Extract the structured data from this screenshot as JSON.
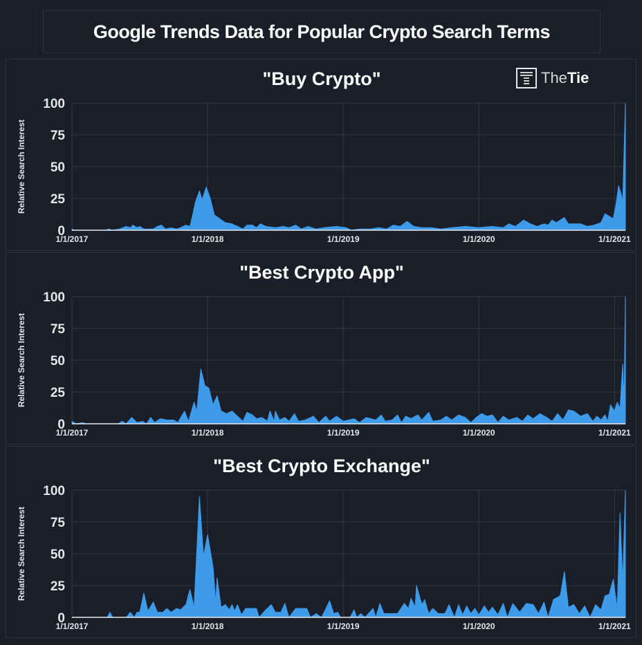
{
  "header": {
    "title": "Google Trends Data for Popular Crypto Search Terms"
  },
  "logo": {
    "text_light": "The",
    "text_bold": "Tie"
  },
  "chart_data": [
    {
      "type": "area",
      "title": "\"Buy Crypto\"",
      "ylabel": "Relative Search Interest",
      "xlabel": "",
      "ylim": [
        0,
        100
      ],
      "xlim": [
        2017.0,
        2021.08
      ],
      "yticks": [
        "0",
        "25",
        "50",
        "75",
        "100"
      ],
      "xticks": [
        {
          "x": 2017,
          "label": "1/1/2017"
        },
        {
          "x": 2018,
          "label": "1/1/2018"
        },
        {
          "x": 2019,
          "label": "1/1/2019"
        },
        {
          "x": 2020,
          "label": "1/1/2020"
        },
        {
          "x": 2021,
          "label": "1/1/2021"
        }
      ],
      "color": "#3d9be9",
      "points": [
        [
          2017.0,
          1
        ],
        [
          2017.02,
          0
        ],
        [
          2017.25,
          0
        ],
        [
          2017.27,
          1
        ],
        [
          2017.3,
          0
        ],
        [
          2017.35,
          1
        ],
        [
          2017.4,
          3
        ],
        [
          2017.43,
          2
        ],
        [
          2017.45,
          4
        ],
        [
          2017.48,
          2
        ],
        [
          2017.5,
          3
        ],
        [
          2017.53,
          1
        ],
        [
          2017.6,
          1
        ],
        [
          2017.63,
          3
        ],
        [
          2017.66,
          4
        ],
        [
          2017.69,
          1
        ],
        [
          2017.73,
          2
        ],
        [
          2017.77,
          1
        ],
        [
          2017.8,
          2
        ],
        [
          2017.84,
          4
        ],
        [
          2017.87,
          3
        ],
        [
          2017.89,
          12
        ],
        [
          2017.91,
          22
        ],
        [
          2017.94,
          31
        ],
        [
          2017.96,
          24
        ],
        [
          2017.99,
          34
        ],
        [
          2018.02,
          25
        ],
        [
          2018.05,
          12
        ],
        [
          2018.09,
          9
        ],
        [
          2018.13,
          6
        ],
        [
          2018.18,
          5
        ],
        [
          2018.22,
          3
        ],
        [
          2018.26,
          1
        ],
        [
          2018.29,
          4
        ],
        [
          2018.33,
          4
        ],
        [
          2018.36,
          2
        ],
        [
          2018.39,
          5
        ],
        [
          2018.43,
          3
        ],
        [
          2018.5,
          2
        ],
        [
          2018.56,
          3
        ],
        [
          2018.6,
          2
        ],
        [
          2018.65,
          4
        ],
        [
          2018.69,
          1
        ],
        [
          2018.74,
          3
        ],
        [
          2018.8,
          1
        ],
        [
          2018.86,
          2
        ],
        [
          2018.95,
          3
        ],
        [
          2019.02,
          2
        ],
        [
          2019.06,
          0
        ],
        [
          2019.12,
          1
        ],
        [
          2019.2,
          1
        ],
        [
          2019.26,
          2
        ],
        [
          2019.32,
          1
        ],
        [
          2019.37,
          4
        ],
        [
          2019.42,
          3
        ],
        [
          2019.47,
          7
        ],
        [
          2019.52,
          3
        ],
        [
          2019.58,
          2
        ],
        [
          2019.65,
          2
        ],
        [
          2019.72,
          1
        ],
        [
          2019.8,
          2
        ],
        [
          2019.9,
          3
        ],
        [
          2020.0,
          2
        ],
        [
          2020.1,
          3
        ],
        [
          2020.18,
          2
        ],
        [
          2020.22,
          5
        ],
        [
          2020.27,
          3
        ],
        [
          2020.33,
          8
        ],
        [
          2020.38,
          5
        ],
        [
          2020.43,
          3
        ],
        [
          2020.48,
          5
        ],
        [
          2020.51,
          4
        ],
        [
          2020.54,
          8
        ],
        [
          2020.57,
          6
        ],
        [
          2020.6,
          8
        ],
        [
          2020.63,
          10
        ],
        [
          2020.66,
          5
        ],
        [
          2020.75,
          5
        ],
        [
          2020.8,
          3
        ],
        [
          2020.85,
          4
        ],
        [
          2020.9,
          6
        ],
        [
          2020.93,
          13
        ],
        [
          2020.96,
          11
        ],
        [
          2020.99,
          9
        ],
        [
          2021.01,
          20
        ],
        [
          2021.03,
          35
        ],
        [
          2021.05,
          28
        ],
        [
          2021.06,
          22
        ],
        [
          2021.07,
          60
        ],
        [
          2021.08,
          100
        ]
      ]
    },
    {
      "type": "area",
      "title": "\"Best Crypto App\"",
      "ylabel": "Relative Search Interest",
      "xlabel": "",
      "ylim": [
        0,
        100
      ],
      "xlim": [
        2017.0,
        2021.08
      ],
      "yticks": [
        "0",
        "25",
        "50",
        "75",
        "100"
      ],
      "xticks": [
        {
          "x": 2017,
          "label": "1/1/2017"
        },
        {
          "x": 2018,
          "label": "1/1/2018"
        },
        {
          "x": 2019,
          "label": "1/1/2019"
        },
        {
          "x": 2020,
          "label": "1/1/2020"
        },
        {
          "x": 2021,
          "label": "1/1/2021"
        }
      ],
      "color": "#3d9be9",
      "points": [
        [
          2017.0,
          2
        ],
        [
          2017.03,
          0
        ],
        [
          2017.08,
          1
        ],
        [
          2017.1,
          0
        ],
        [
          2017.34,
          0
        ],
        [
          2017.37,
          2
        ],
        [
          2017.4,
          0
        ],
        [
          2017.44,
          5
        ],
        [
          2017.48,
          1
        ],
        [
          2017.52,
          2
        ],
        [
          2017.55,
          0
        ],
        [
          2017.58,
          5
        ],
        [
          2017.61,
          1
        ],
        [
          2017.65,
          4
        ],
        [
          2017.7,
          3
        ],
        [
          2017.75,
          3
        ],
        [
          2017.78,
          1
        ],
        [
          2017.83,
          10
        ],
        [
          2017.86,
          2
        ],
        [
          2017.9,
          17
        ],
        [
          2017.92,
          10
        ],
        [
          2017.95,
          43
        ],
        [
          2017.98,
          30
        ],
        [
          2018.01,
          28
        ],
        [
          2018.04,
          15
        ],
        [
          2018.07,
          22
        ],
        [
          2018.1,
          10
        ],
        [
          2018.14,
          8
        ],
        [
          2018.18,
          10
        ],
        [
          2018.22,
          6
        ],
        [
          2018.26,
          2
        ],
        [
          2018.29,
          9
        ],
        [
          2018.33,
          7
        ],
        [
          2018.36,
          4
        ],
        [
          2018.4,
          5
        ],
        [
          2018.44,
          2
        ],
        [
          2018.46,
          10
        ],
        [
          2018.49,
          2
        ],
        [
          2018.5,
          10
        ],
        [
          2018.53,
          3
        ],
        [
          2018.57,
          5
        ],
        [
          2018.6,
          2
        ],
        [
          2018.64,
          8
        ],
        [
          2018.67,
          2
        ],
        [
          2018.72,
          3
        ],
        [
          2018.78,
          6
        ],
        [
          2018.82,
          1
        ],
        [
          2018.87,
          6
        ],
        [
          2018.9,
          2
        ],
        [
          2018.95,
          6
        ],
        [
          2019.0,
          2
        ],
        [
          2019.08,
          4
        ],
        [
          2019.12,
          1
        ],
        [
          2019.17,
          5
        ],
        [
          2019.24,
          3
        ],
        [
          2019.28,
          7
        ],
        [
          2019.31,
          2
        ],
        [
          2019.36,
          3
        ],
        [
          2019.4,
          7
        ],
        [
          2019.43,
          1
        ],
        [
          2019.46,
          6
        ],
        [
          2019.5,
          4
        ],
        [
          2019.55,
          7
        ],
        [
          2019.58,
          3
        ],
        [
          2019.63,
          9
        ],
        [
          2019.66,
          2
        ],
        [
          2019.72,
          3
        ],
        [
          2019.76,
          6
        ],
        [
          2019.8,
          3
        ],
        [
          2019.85,
          7
        ],
        [
          2019.9,
          5
        ],
        [
          2019.94,
          1
        ],
        [
          2019.98,
          5
        ],
        [
          2020.02,
          8
        ],
        [
          2020.06,
          6
        ],
        [
          2020.1,
          7
        ],
        [
          2020.14,
          1
        ],
        [
          2020.18,
          6
        ],
        [
          2020.22,
          3
        ],
        [
          2020.28,
          5
        ],
        [
          2020.32,
          2
        ],
        [
          2020.36,
          7
        ],
        [
          2020.4,
          4
        ],
        [
          2020.45,
          8
        ],
        [
          2020.5,
          5
        ],
        [
          2020.54,
          2
        ],
        [
          2020.58,
          8
        ],
        [
          2020.62,
          3
        ],
        [
          2020.66,
          11
        ],
        [
          2020.7,
          10
        ],
        [
          2020.75,
          6
        ],
        [
          2020.8,
          8
        ],
        [
          2020.84,
          2
        ],
        [
          2020.87,
          6
        ],
        [
          2020.9,
          3
        ],
        [
          2020.93,
          7
        ],
        [
          2020.95,
          2
        ],
        [
          2020.97,
          15
        ],
        [
          2021.0,
          10
        ],
        [
          2021.02,
          17
        ],
        [
          2021.04,
          12
        ],
        [
          2021.06,
          47
        ],
        [
          2021.07,
          18
        ],
        [
          2021.08,
          100
        ]
      ]
    },
    {
      "type": "area",
      "title": "\"Best Crypto Exchange\"",
      "ylabel": "Relative Search Interest",
      "xlabel": "",
      "ylim": [
        0,
        100
      ],
      "xlim": [
        2017.0,
        2021.08
      ],
      "yticks": [
        "0",
        "25",
        "50",
        "75",
        "100"
      ],
      "xticks": [
        {
          "x": 2017,
          "label": "1/1/2017"
        },
        {
          "x": 2018,
          "label": "1/1/2018"
        },
        {
          "x": 2019,
          "label": "1/1/2019"
        },
        {
          "x": 2020,
          "label": "1/1/2020"
        },
        {
          "x": 2021,
          "label": "1/1/2021"
        }
      ],
      "color": "#3d9be9",
      "points": [
        [
          2017.0,
          0
        ],
        [
          2017.26,
          0
        ],
        [
          2017.28,
          4
        ],
        [
          2017.3,
          0
        ],
        [
          2017.4,
          0
        ],
        [
          2017.43,
          4
        ],
        [
          2017.46,
          0
        ],
        [
          2017.48,
          4
        ],
        [
          2017.5,
          4
        ],
        [
          2017.53,
          19
        ],
        [
          2017.56,
          5
        ],
        [
          2017.6,
          12
        ],
        [
          2017.63,
          4
        ],
        [
          2017.67,
          4
        ],
        [
          2017.7,
          7
        ],
        [
          2017.73,
          4
        ],
        [
          2017.77,
          7
        ],
        [
          2017.8,
          6
        ],
        [
          2017.84,
          10
        ],
        [
          2017.87,
          22
        ],
        [
          2017.9,
          8
        ],
        [
          2017.94,
          95
        ],
        [
          2017.97,
          48
        ],
        [
          2018.0,
          65
        ],
        [
          2018.04,
          40
        ],
        [
          2018.06,
          12
        ],
        [
          2018.07,
          31
        ],
        [
          2018.1,
          8
        ],
        [
          2018.13,
          10
        ],
        [
          2018.16,
          6
        ],
        [
          2018.18,
          10
        ],
        [
          2018.2,
          5
        ],
        [
          2018.22,
          10
        ],
        [
          2018.25,
          2
        ],
        [
          2018.28,
          7
        ],
        [
          2018.36,
          7
        ],
        [
          2018.38,
          0
        ],
        [
          2018.42,
          5
        ],
        [
          2018.47,
          10
        ],
        [
          2018.5,
          4
        ],
        [
          2018.54,
          4
        ],
        [
          2018.57,
          11
        ],
        [
          2018.6,
          0
        ],
        [
          2018.65,
          7
        ],
        [
          2018.73,
          7
        ],
        [
          2018.76,
          0
        ],
        [
          2018.8,
          3
        ],
        [
          2018.84,
          0
        ],
        [
          2018.9,
          13
        ],
        [
          2018.93,
          3
        ],
        [
          2018.96,
          4
        ],
        [
          2018.98,
          0
        ],
        [
          2019.05,
          0
        ],
        [
          2019.08,
          6
        ],
        [
          2019.1,
          0
        ],
        [
          2019.13,
          3
        ],
        [
          2019.16,
          0
        ],
        [
          2019.22,
          7
        ],
        [
          2019.24,
          0
        ],
        [
          2019.27,
          11
        ],
        [
          2019.3,
          3
        ],
        [
          2019.4,
          3
        ],
        [
          2019.45,
          11
        ],
        [
          2019.48,
          7
        ],
        [
          2019.5,
          15
        ],
        [
          2019.53,
          8
        ],
        [
          2019.54,
          25
        ],
        [
          2019.58,
          10
        ],
        [
          2019.6,
          14
        ],
        [
          2019.63,
          3
        ],
        [
          2019.66,
          7
        ],
        [
          2019.7,
          3
        ],
        [
          2019.75,
          3
        ],
        [
          2019.78,
          10
        ],
        [
          2019.82,
          0
        ],
        [
          2019.85,
          10
        ],
        [
          2019.88,
          2
        ],
        [
          2019.91,
          9
        ],
        [
          2019.94,
          3
        ],
        [
          2019.97,
          7
        ],
        [
          2020.0,
          2
        ],
        [
          2020.04,
          9
        ],
        [
          2020.07,
          4
        ],
        [
          2020.1,
          8
        ],
        [
          2020.14,
          2
        ],
        [
          2020.18,
          11
        ],
        [
          2020.21,
          0
        ],
        [
          2020.25,
          11
        ],
        [
          2020.3,
          4
        ],
        [
          2020.35,
          11
        ],
        [
          2020.4,
          10
        ],
        [
          2020.44,
          3
        ],
        [
          2020.48,
          12
        ],
        [
          2020.51,
          0
        ],
        [
          2020.55,
          14
        ],
        [
          2020.6,
          17
        ],
        [
          2020.63,
          36
        ],
        [
          2020.66,
          8
        ],
        [
          2020.7,
          10
        ],
        [
          2020.74,
          3
        ],
        [
          2020.78,
          9
        ],
        [
          2020.82,
          0
        ],
        [
          2020.86,
          10
        ],
        [
          2020.9,
          6
        ],
        [
          2020.93,
          17
        ],
        [
          2020.96,
          18
        ],
        [
          2020.99,
          30
        ],
        [
          2021.02,
          7
        ],
        [
          2021.04,
          82
        ],
        [
          2021.06,
          28
        ],
        [
          2021.08,
          100
        ]
      ]
    }
  ]
}
